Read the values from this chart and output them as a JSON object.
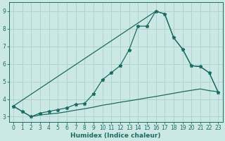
{
  "xlabel": "Humidex (Indice chaleur)",
  "background_color": "#cce8e5",
  "grid_color": "#afd4d0",
  "line_color": "#1a6b63",
  "x": [
    0,
    1,
    2,
    3,
    4,
    5,
    6,
    7,
    8,
    9,
    10,
    11,
    12,
    13,
    14,
    15,
    16,
    17,
    18,
    19,
    20,
    21,
    22,
    23
  ],
  "curve_top": [
    3.6,
    3.3,
    3.0,
    3.2,
    3.3,
    3.4,
    3.5,
    3.7,
    3.75,
    4.3,
    5.1,
    5.5,
    5.9,
    6.8,
    8.15,
    8.15,
    9.0,
    8.85,
    7.5,
    6.85,
    5.9,
    5.85,
    5.5,
    4.4
  ],
  "curve_mid_x": [
    0,
    16,
    17,
    18,
    19,
    20,
    21,
    22,
    23
  ],
  "curve_mid_y": [
    3.6,
    9.0,
    8.85,
    7.5,
    6.85,
    5.9,
    5.85,
    5.5,
    4.4
  ],
  "curve_bot": [
    3.6,
    3.3,
    3.0,
    3.1,
    3.15,
    3.2,
    3.28,
    3.37,
    3.45,
    3.54,
    3.65,
    3.73,
    3.82,
    3.9,
    3.98,
    4.07,
    4.15,
    4.24,
    4.33,
    4.42,
    4.5,
    4.58,
    4.48,
    4.42
  ],
  "ylim": [
    2.7,
    9.5
  ],
  "xlim": [
    -0.5,
    23.5
  ],
  "yticks": [
    3,
    4,
    5,
    6,
    7,
    8,
    9
  ],
  "xticks": [
    0,
    1,
    2,
    3,
    4,
    5,
    6,
    7,
    8,
    9,
    10,
    11,
    12,
    13,
    14,
    15,
    16,
    17,
    18,
    19,
    20,
    21,
    22,
    23
  ],
  "figsize": [
    3.2,
    2.0
  ],
  "dpi": 100
}
